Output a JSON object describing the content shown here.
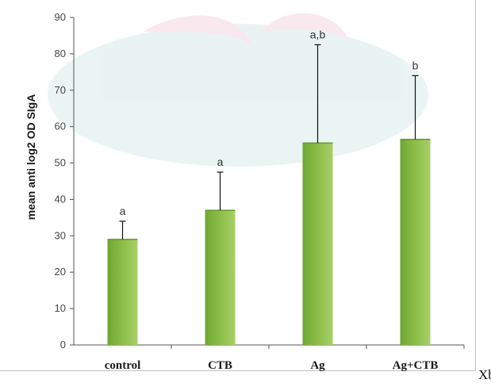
{
  "chart_data": {
    "type": "bar",
    "categories": [
      "control",
      "CTB",
      "Ag",
      "Ag+CTB"
    ],
    "values": [
      29,
      37,
      55.5,
      56.5
    ],
    "error_upper": [
      34,
      47.5,
      82.5,
      74
    ],
    "significance_labels": [
      "a",
      "a",
      "a,b",
      "b"
    ],
    "title": "",
    "xlabel": "",
    "ylabel": "mean anti log2 OD SIgA",
    "ylim": [
      0,
      90
    ],
    "yticks": [
      0,
      10,
      20,
      30,
      40,
      50,
      60,
      70,
      80,
      90
    ],
    "grid": false,
    "bar_color": "#8fc04a",
    "bar_dark_color": "#5f9a2a"
  },
  "trailing_text": "Xb,"
}
